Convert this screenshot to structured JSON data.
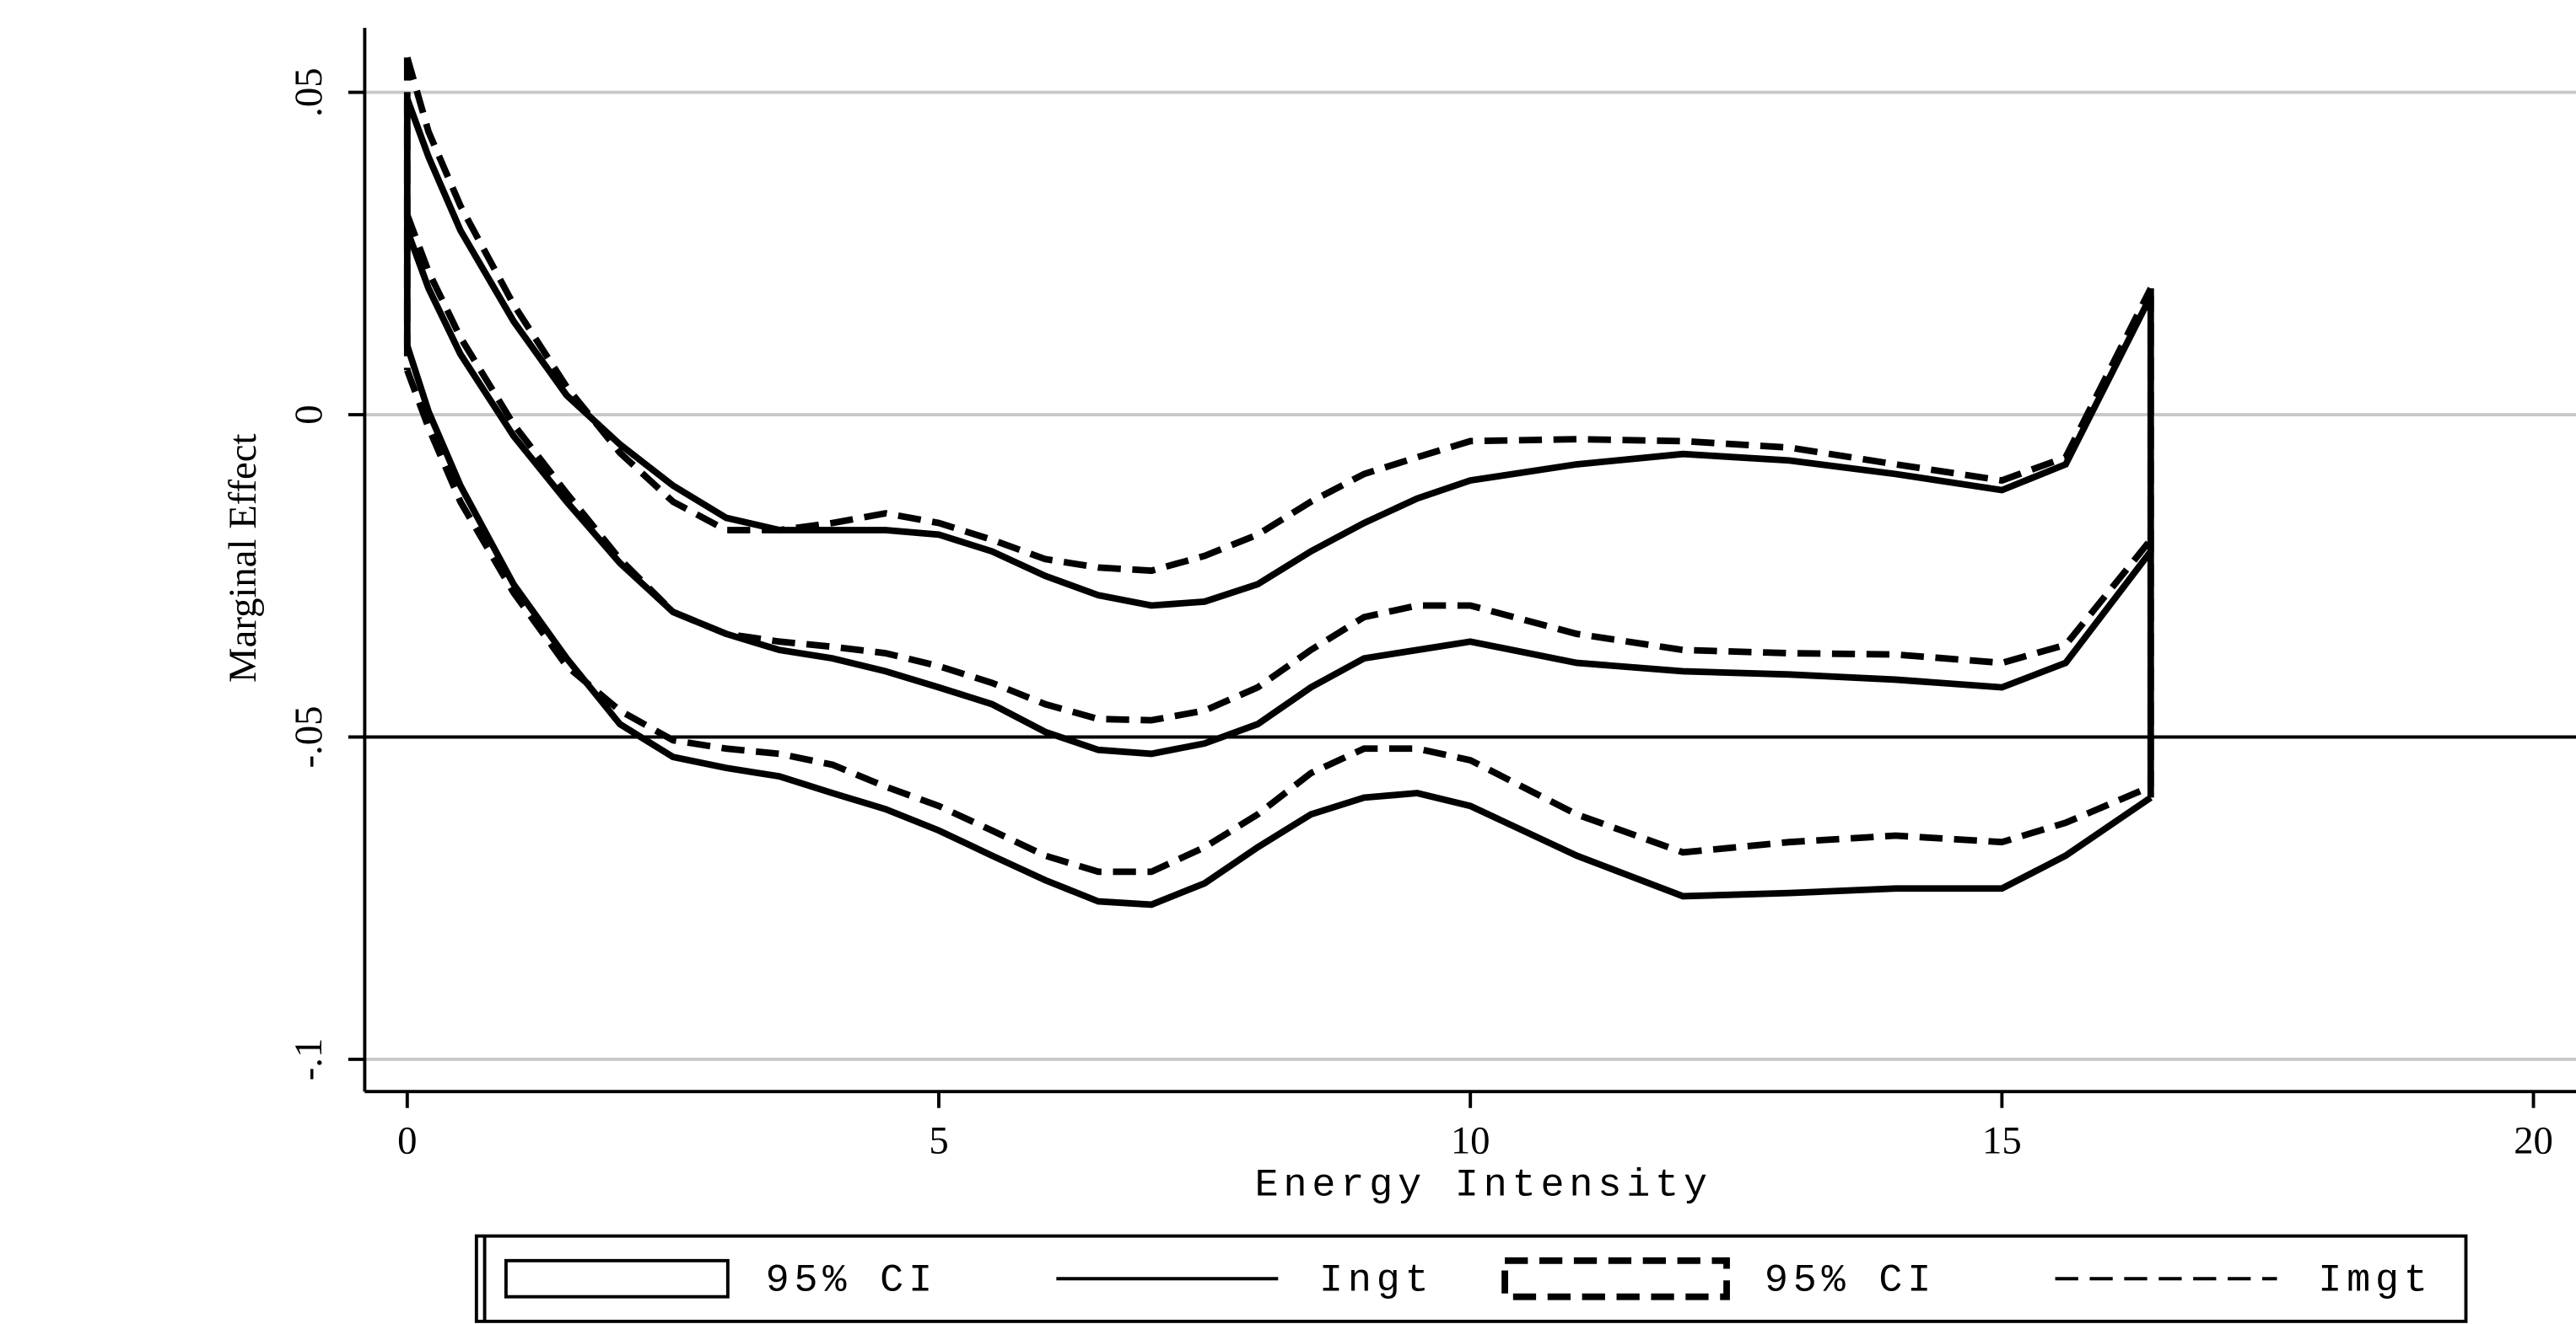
{
  "chart_data": {
    "type": "line",
    "x_label": "Energy Intensity",
    "y_label": "Marginal Effect",
    "x": [
      0,
      0.2,
      0.5,
      1,
      1.5,
      2,
      2.5,
      3,
      3.5,
      4,
      4.5,
      5,
      5.5,
      6,
      6.5,
      7,
      7.5,
      8,
      8.5,
      9,
      9.5,
      10,
      11,
      12,
      13,
      14,
      15,
      15.6,
      16.4
    ],
    "series": [
      {
        "name": "Ingt",
        "color": "#000000",
        "dashed": false,
        "ci_name": "95% CI",
        "values": [
          0.0286,
          0.0196,
          0.0094,
          -0.0033,
          -0.0135,
          -0.023,
          -0.0306,
          -0.034,
          -0.0365,
          -0.0378,
          -0.0398,
          -0.0423,
          -0.0449,
          -0.0492,
          -0.052,
          -0.0526,
          -0.051,
          -0.048,
          -0.0423,
          -0.0378,
          -0.0365,
          -0.0352,
          -0.0385,
          -0.0398,
          -0.0403,
          -0.0411,
          -0.0423,
          -0.0385,
          -0.0212
        ],
        "ci_upper": [
          0.049,
          0.04,
          0.0286,
          0.0145,
          0.003,
          -0.0046,
          -0.011,
          -0.016,
          -0.0179,
          -0.0179,
          -0.0179,
          -0.0186,
          -0.0212,
          -0.025,
          -0.028,
          -0.0296,
          -0.029,
          -0.0263,
          -0.0212,
          -0.0168,
          -0.013,
          -0.0102,
          -0.0077,
          -0.0061,
          -0.0071,
          -0.0092,
          -0.0117,
          -0.0077,
          0.0184
        ],
        "ci_lower": [
          0.0107,
          0.0005,
          -0.011,
          -0.0263,
          -0.0378,
          -0.048,
          -0.0531,
          -0.0548,
          -0.0561,
          -0.0587,
          -0.0612,
          -0.0645,
          -0.0684,
          -0.0722,
          -0.0755,
          -0.076,
          -0.0727,
          -0.0671,
          -0.062,
          -0.0594,
          -0.0587,
          -0.0607,
          -0.0684,
          -0.0747,
          -0.0742,
          -0.0735,
          -0.0735,
          -0.0684,
          -0.0594
        ]
      },
      {
        "name": "Imgt",
        "color": "#000000",
        "dashed": true,
        "ci_name": "95% CI",
        "values": [
          0.031,
          0.0222,
          0.012,
          -0.0015,
          -0.0122,
          -0.0224,
          -0.0306,
          -0.034,
          -0.0352,
          -0.036,
          -0.037,
          -0.039,
          -0.0416,
          -0.0449,
          -0.0472,
          -0.0474,
          -0.0459,
          -0.0423,
          -0.0365,
          -0.0314,
          -0.0296,
          -0.0296,
          -0.034,
          -0.0365,
          -0.037,
          -0.0372,
          -0.0385,
          -0.0357,
          -0.0194
        ],
        "ci_upper": [
          0.0554,
          0.0439,
          0.0324,
          0.0171,
          0.0043,
          -0.0059,
          -0.0135,
          -0.0179,
          -0.0179,
          -0.0168,
          -0.0153,
          -0.0168,
          -0.0194,
          -0.0224,
          -0.0237,
          -0.0242,
          -0.0219,
          -0.0186,
          -0.0135,
          -0.0092,
          -0.0066,
          -0.0041,
          -0.0038,
          -0.0041,
          -0.0051,
          -0.0077,
          -0.0102,
          -0.0066,
          0.0196
        ],
        "ci_lower": [
          0.0069,
          -0.002,
          -0.0135,
          -0.0276,
          -0.039,
          -0.0459,
          -0.0505,
          -0.0518,
          -0.0526,
          -0.0543,
          -0.0577,
          -0.0607,
          -0.0645,
          -0.0684,
          -0.0709,
          -0.0709,
          -0.0671,
          -0.062,
          -0.0556,
          -0.0518,
          -0.0518,
          -0.0536,
          -0.062,
          -0.0679,
          -0.0663,
          -0.0653,
          -0.0663,
          -0.0633,
          -0.0577
        ]
      }
    ],
    "xlim": [
      -0.4,
      20.4
    ],
    "xticks": [
      0,
      5,
      10,
      15,
      20
    ],
    "ylim": [
      -0.105,
      0.06
    ],
    "yticks": [
      {
        "value": -0.1,
        "label": "-.1"
      },
      {
        "value": -0.05,
        "label": "-.05"
      },
      0,
      {
        "value": 0.05,
        "label": ".05"
      }
    ],
    "yline": -0.05,
    "grid": true,
    "legend": "bottom"
  }
}
